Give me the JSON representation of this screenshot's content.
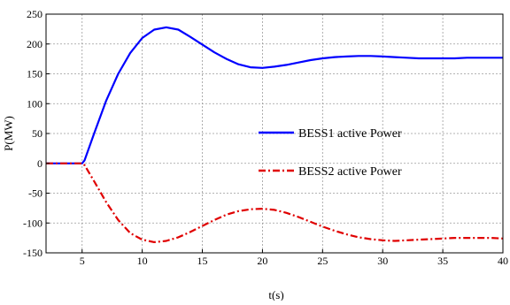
{
  "chart_data": {
    "type": "line",
    "title": "",
    "xlabel": "t(s)",
    "ylabel": "P(MW)",
    "xlim": [
      2,
      40
    ],
    "ylim": [
      -150,
      250
    ],
    "xticks": [
      5,
      10,
      15,
      20,
      25,
      30,
      35,
      40
    ],
    "yticks": [
      -150,
      -100,
      -50,
      0,
      50,
      100,
      150,
      200,
      250
    ],
    "grid": true,
    "legend_position": "center-right",
    "series": [
      {
        "name": "BESS1 active Power",
        "color": "#0000ff",
        "style": "solid",
        "x": [
          2,
          5,
          5.2,
          6,
          7,
          8,
          9,
          10,
          11,
          12,
          13,
          14,
          15,
          16,
          17,
          18,
          19,
          20,
          21,
          22,
          23,
          24,
          25,
          26,
          27,
          28,
          29,
          30,
          31,
          32,
          33,
          34,
          35,
          36,
          37,
          38,
          39,
          40
        ],
        "y": [
          0,
          0,
          5,
          50,
          105,
          150,
          185,
          210,
          224,
          228,
          224,
          212,
          199,
          186,
          175,
          166,
          161,
          160,
          162,
          165,
          169,
          173,
          176,
          178,
          179,
          180,
          180,
          179,
          178,
          177,
          176,
          176,
          176,
          176,
          177,
          177,
          177,
          177
        ]
      },
      {
        "name": "BESS2 active Power",
        "color": "#e00000",
        "style": "dashdot",
        "x": [
          2,
          5,
          5.2,
          6,
          7,
          8,
          9,
          10,
          11,
          12,
          13,
          14,
          15,
          16,
          17,
          18,
          19,
          20,
          21,
          22,
          23,
          24,
          25,
          26,
          27,
          28,
          29,
          30,
          31,
          32,
          33,
          34,
          35,
          36,
          37,
          38,
          39,
          40
        ],
        "y": [
          0,
          0,
          -3,
          -30,
          -65,
          -95,
          -117,
          -128,
          -132,
          -130,
          -124,
          -115,
          -105,
          -95,
          -86,
          -80,
          -77,
          -76,
          -78,
          -83,
          -90,
          -98,
          -106,
          -113,
          -119,
          -124,
          -127,
          -129,
          -130,
          -129,
          -128,
          -127,
          -126,
          -125,
          -125,
          -125,
          -125,
          -126
        ]
      }
    ]
  }
}
